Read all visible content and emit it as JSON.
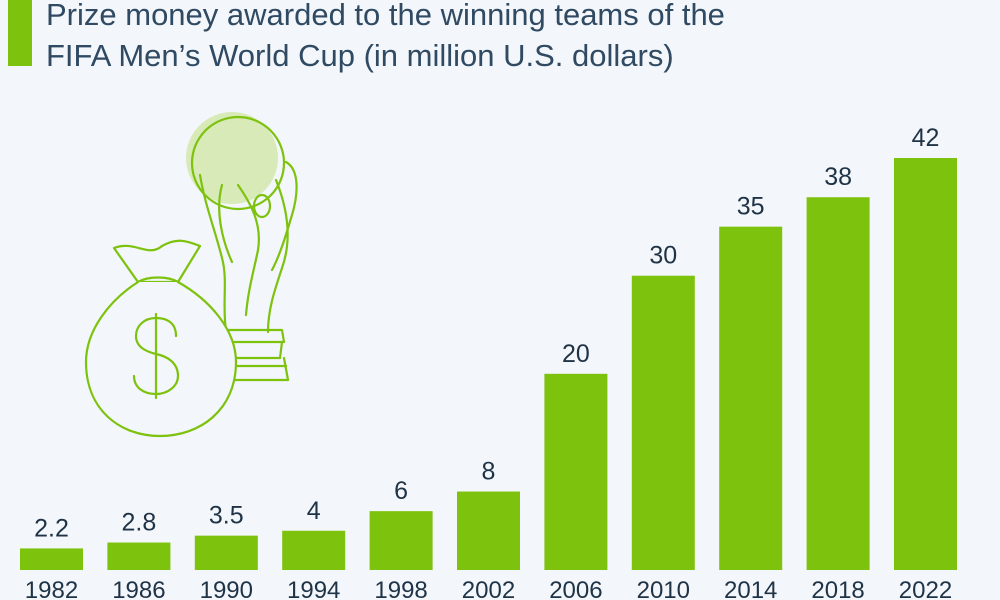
{
  "title_lines": [
    "Prize money awarded to the winning teams of the",
    "FIFA Men’s World Cup (in million U.S. dollars)"
  ],
  "colors": {
    "bar": "#7dc20d",
    "accent_light": "#cfe7a6",
    "text": "#1f3347",
    "background": "#f3f6fa"
  },
  "icons": [
    "trophy-icon",
    "money-bag-icon"
  ],
  "chart_data": {
    "type": "bar",
    "title": "Prize money awarded to the winning teams of the FIFA Men’s World Cup (in million U.S. dollars)",
    "categories": [
      "1982",
      "1986",
      "1990",
      "1994",
      "1998",
      "2002",
      "2006",
      "2010",
      "2014",
      "2018",
      "2022"
    ],
    "values": [
      2.2,
      2.8,
      3.5,
      4,
      6,
      8,
      20,
      30,
      35,
      38,
      42
    ],
    "value_labels": [
      "2.2",
      "2.8",
      "3.5",
      "4",
      "6",
      "8",
      "20",
      "30",
      "35",
      "38",
      "42"
    ],
    "xlabel": "",
    "ylabel": "",
    "ylim": [
      0,
      42
    ],
    "grid": false,
    "legend": "none"
  }
}
